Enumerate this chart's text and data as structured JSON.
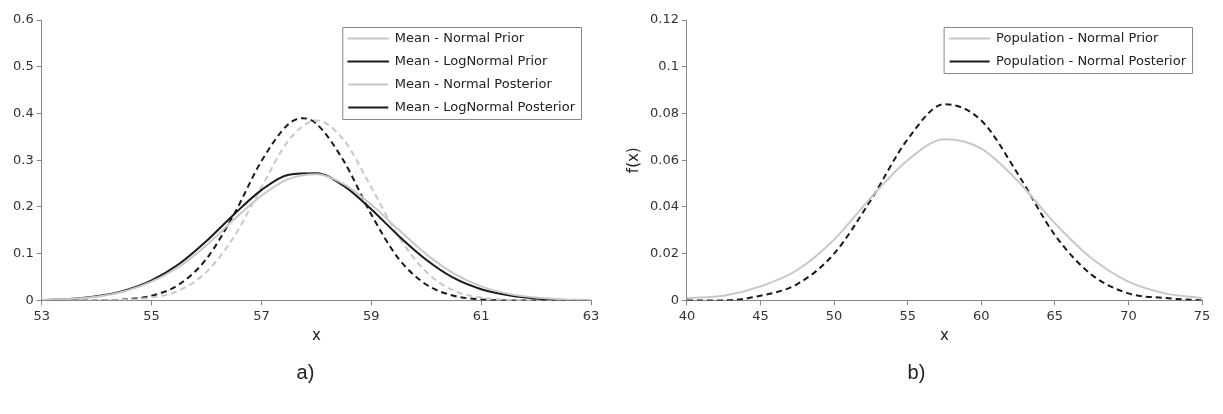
{
  "chart_data": [
    {
      "type": "line",
      "xlabel": "x",
      "annotations": [
        "a)"
      ],
      "x": [
        53,
        53.5,
        54,
        54.5,
        55,
        55.5,
        56,
        56.5,
        57,
        57.5,
        58,
        58.5,
        59,
        59.5,
        60,
        60.5,
        61,
        61.5,
        62,
        62.5,
        63
      ],
      "xlim": [
        53,
        63
      ],
      "xticks": [
        53,
        55,
        57,
        59,
        61,
        63
      ],
      "ylim": [
        0,
        0.6
      ],
      "yticks": [
        0,
        0.1,
        0.2,
        0.3,
        0.4,
        0.5,
        0.6
      ],
      "legend": "top right",
      "series": [
        {
          "name": "Mean - Normal Prior",
          "color": "#c8c8c8",
          "line_style": "solid",
          "values": [
            0.001,
            0.003,
            0.008,
            0.019,
            0.04,
            0.072,
            0.118,
            0.173,
            0.224,
            0.26,
            0.27,
            0.249,
            0.205,
            0.151,
            0.099,
            0.058,
            0.03,
            0.014,
            0.006,
            0.002,
            0.001
          ]
        },
        {
          "name": "Mean - LogNormal Prior",
          "color": "#1a1a1a",
          "line_style": "solid",
          "values": [
            0.001,
            0.003,
            0.009,
            0.021,
            0.043,
            0.078,
            0.127,
            0.184,
            0.236,
            0.269,
            0.272,
            0.245,
            0.195,
            0.138,
            0.087,
            0.048,
            0.024,
            0.011,
            0.004,
            0.001,
            0.0
          ]
        },
        {
          "name": "Mean - Normal Posterior",
          "color": "#c8c8c8",
          "line_style": "dashed",
          "values": [
            0.0,
            0.0,
            0.0,
            0.001,
            0.006,
            0.021,
            0.061,
            0.136,
            0.242,
            0.343,
            0.385,
            0.343,
            0.242,
            0.136,
            0.061,
            0.021,
            0.006,
            0.001,
            0.0,
            0.0,
            0.0
          ]
        },
        {
          "name": "Mean - LogNormal Posterior",
          "color": "#1a1a1a",
          "line_style": "dashed",
          "x": [
            53,
            53.5,
            54,
            54.5,
            55,
            55.5,
            56,
            56.5,
            57,
            57.5,
            57.75,
            58,
            58.5,
            59,
            59.5,
            60,
            60.5,
            61,
            61.5,
            62,
            62.5,
            63
          ],
          "values": [
            0.0,
            0.0,
            0.0,
            0.002,
            0.01,
            0.034,
            0.089,
            0.184,
            0.298,
            0.378,
            0.39,
            0.378,
            0.298,
            0.184,
            0.089,
            0.034,
            0.01,
            0.002,
            0.0,
            0.0,
            0.0,
            0.0
          ]
        }
      ]
    },
    {
      "type": "line",
      "xlabel": "x",
      "ylabel": "f(x)",
      "annotations": [
        "b)"
      ],
      "x": [
        40,
        42.5,
        45,
        47.5,
        50,
        52.5,
        55,
        57.5,
        60,
        62.5,
        65,
        67.5,
        70,
        72.5,
        75
      ],
      "xlim": [
        40,
        75
      ],
      "xticks": [
        40,
        45,
        50,
        55,
        60,
        65,
        70,
        75
      ],
      "ylim": [
        0,
        0.12
      ],
      "yticks": [
        0,
        0.02,
        0.04,
        0.06,
        0.08,
        0.1,
        0.12
      ],
      "legend": "top right",
      "series": [
        {
          "name": "Population - Normal Prior",
          "color": "#c8c8c8",
          "line_style": "solid",
          "values": [
            0.001,
            0.002,
            0.006,
            0.013,
            0.026,
            0.044,
            0.06,
            0.069,
            0.065,
            0.051,
            0.033,
            0.018,
            0.008,
            0.003,
            0.001
          ]
        },
        {
          "name": "Population - Normal Posterior",
          "color": "#1a1a1a",
          "line_style": "dashed",
          "values": [
            0.0,
            0.0,
            0.002,
            0.007,
            0.02,
            0.043,
            0.069,
            0.084,
            0.077,
            0.054,
            0.028,
            0.011,
            0.003,
            0.001,
            0.0
          ]
        }
      ]
    }
  ]
}
